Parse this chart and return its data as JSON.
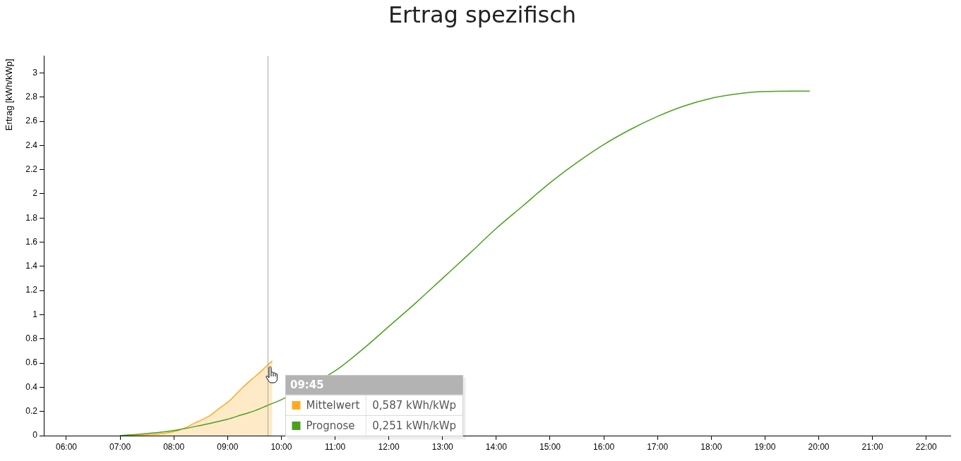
{
  "chart_data": {
    "type": "line",
    "title": "Ertrag spezifisch",
    "ylabel": "Ertrag [kWh/kWp]",
    "xlim": [
      5.58,
      22.45
    ],
    "xticks": [
      {
        "value": 6,
        "label": "06:00"
      },
      {
        "value": 7,
        "label": "07:00"
      },
      {
        "value": 8,
        "label": "08:00"
      },
      {
        "value": 9,
        "label": "09:00"
      },
      {
        "value": 10,
        "label": "10:00"
      },
      {
        "value": 11,
        "label": "11:00"
      },
      {
        "value": 12,
        "label": "12:00"
      },
      {
        "value": 13,
        "label": "13:00"
      },
      {
        "value": 14,
        "label": "14:00"
      },
      {
        "value": 15,
        "label": "15:00"
      },
      {
        "value": 16,
        "label": "16:00"
      },
      {
        "value": 17,
        "label": "17:00"
      },
      {
        "value": 18,
        "label": "18:00"
      },
      {
        "value": 19,
        "label": "19:00"
      },
      {
        "value": 20,
        "label": "20:00"
      },
      {
        "value": 21,
        "label": "21:00"
      },
      {
        "value": 22,
        "label": "22:00"
      }
    ],
    "ylim": [
      0,
      3.14
    ],
    "yticks": [
      0,
      0.2,
      0.4,
      0.6,
      0.8,
      1,
      1.2,
      1.4,
      1.6,
      1.8,
      2,
      2.2,
      2.4,
      2.6,
      2.8,
      3
    ],
    "series": [
      {
        "name": "Mittelwert",
        "type": "area",
        "color": "#ffaa22",
        "x": [
          7,
          7.3,
          7.6,
          7.85,
          8.05,
          8.25,
          8.4,
          8.5,
          8.67,
          8.84,
          9.02,
          9.28,
          9.45,
          9.63,
          9.75,
          9.833
        ],
        "values": [
          0,
          0.003,
          0.01,
          0.02,
          0.039,
          0.072,
          0.107,
          0.126,
          0.165,
          0.224,
          0.282,
          0.398,
          0.466,
          0.534,
          0.587,
          0.617
        ]
      },
      {
        "name": "Prognose",
        "type": "line",
        "color": "#4aa01c",
        "x": [
          7,
          7.5,
          8,
          8.5,
          9,
          9.25,
          9.5,
          9.75,
          10,
          10.5,
          11,
          11.5,
          12,
          12.5,
          13,
          13.5,
          14,
          14.5,
          15,
          15.5,
          16,
          16.5,
          17,
          17.5,
          18,
          18.5,
          19,
          19.5,
          19.833
        ],
        "values": [
          0,
          0.017,
          0.042,
          0.085,
          0.135,
          0.17,
          0.205,
          0.251,
          0.297,
          null,
          0.535,
          0.709,
          0.903,
          1.097,
          1.301,
          1.505,
          1.714,
          1.902,
          2.091,
          2.258,
          2.407,
          2.533,
          2.64,
          2.727,
          2.79,
          2.828,
          2.846,
          2.85,
          2.85
        ]
      }
    ],
    "ref_lines": [
      {
        "axis": "x",
        "value": 9.75,
        "color": "#a6a6a6"
      }
    ],
    "annotations": [
      "09:45",
      "0,587 kWh/kWp",
      "0,251 kWh/kWp"
    ],
    "legend": "bottom"
  }
}
